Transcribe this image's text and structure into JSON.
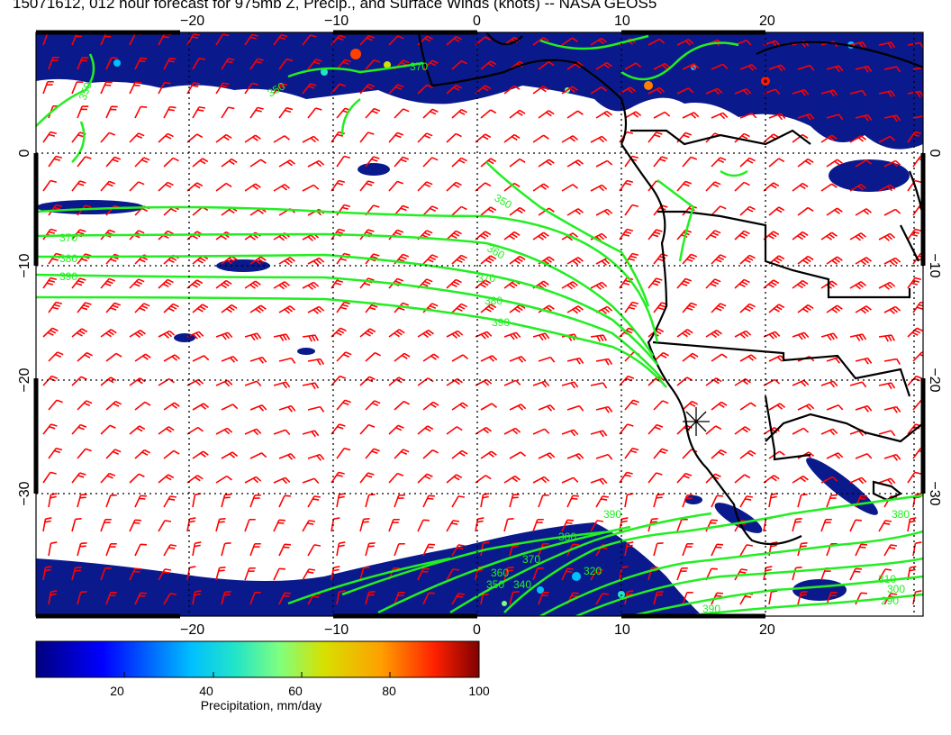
{
  "title": "15071612, 012 hour forecast for 975mb Z, Precip., and Surface Winds (knots) -- NASA GEOS5",
  "map": {
    "lon_range": [
      -30,
      31
    ],
    "lat_range": [
      -40,
      10
    ],
    "top_lon_ticks": [
      "−20",
      "−10",
      "0",
      "10",
      "20"
    ],
    "bottom_lon_ticks": [
      "−20",
      "−10",
      "0",
      "10",
      "20"
    ],
    "left_lat_ticks": [
      "0",
      "−10",
      "−20",
      "−30"
    ],
    "right_lat_ticks": [
      "0",
      "−10",
      "−20",
      "−30"
    ],
    "contour_labels": [
      "350",
      "370",
      "350",
      "350",
      "370",
      "380",
      "390",
      "360",
      "370",
      "380",
      "390",
      "390",
      "380",
      "370",
      "360",
      "350",
      "340",
      "320",
      "310",
      "300",
      "290",
      "380",
      "390"
    ],
    "contour_color": "#22ee22",
    "wind_barb_color": "#ff0000",
    "coastline_color": "#000000",
    "precip_region_color": "#0a1a8c",
    "grid_style": "dotted"
  },
  "colorbar": {
    "ticks": [
      "20",
      "40",
      "60",
      "80",
      "100"
    ],
    "label": "Precipitation, mm/day",
    "min": 0,
    "max": 100,
    "colors": [
      "#00007f",
      "#0000ff",
      "#00bfff",
      "#22e5c8",
      "#7fff7f",
      "#d7e000",
      "#ff9f00",
      "#ff2000",
      "#7f0000"
    ]
  }
}
